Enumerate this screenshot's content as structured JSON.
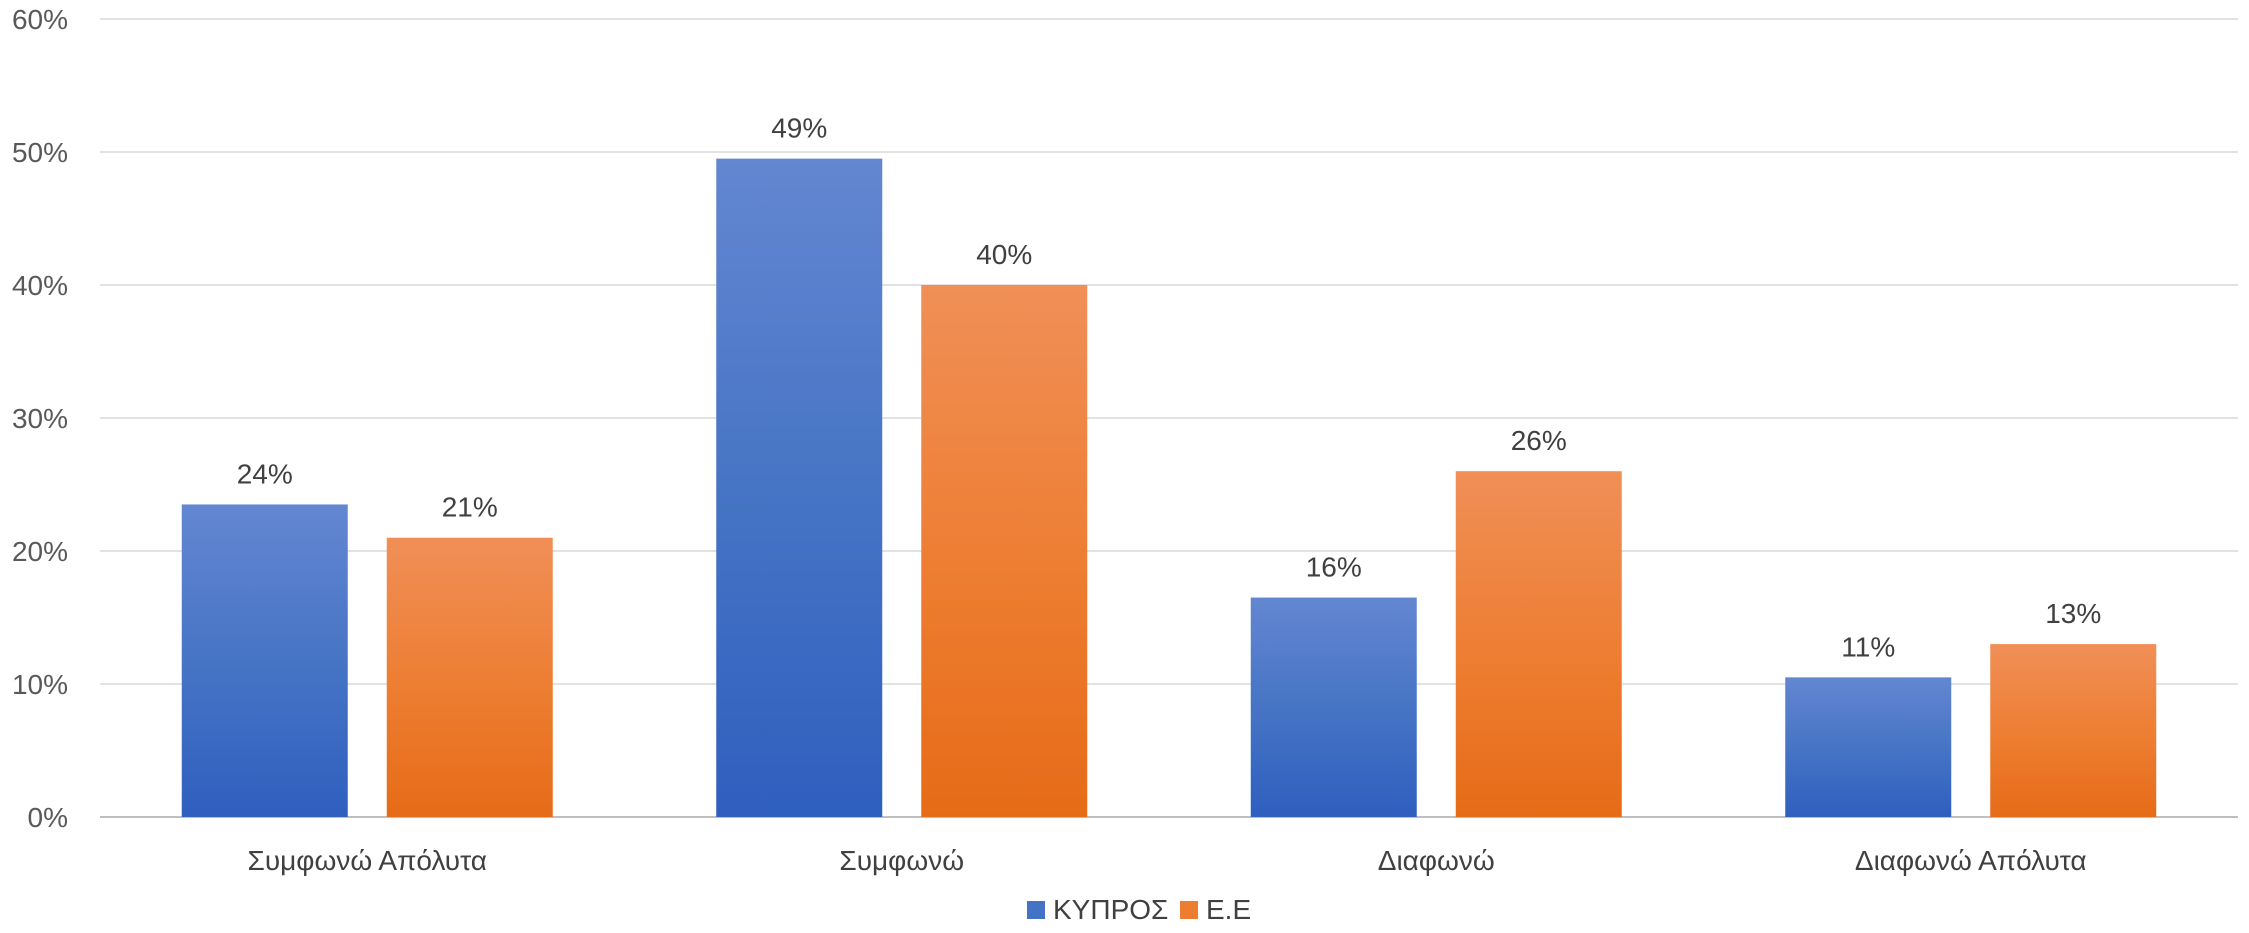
{
  "chart_data": {
    "type": "bar",
    "categories": [
      "Συμφωνώ Απόλυτα",
      "Συμφωνώ",
      "Διαφωνώ",
      "Διαφωνώ Απόλυτα"
    ],
    "series": [
      {
        "name": "ΚΥΠΡΟΣ",
        "values": [
          23.5,
          49.5,
          16.5,
          10.5
        ],
        "labels": [
          "24%",
          "49%",
          "16%",
          "11%"
        ],
        "color": "#4472c4",
        "color_light": "#6387d1",
        "color_dark": "#2f5fbf"
      },
      {
        "name": "Ε.Ε",
        "values": [
          21,
          40,
          26,
          13
        ],
        "labels": [
          "21%",
          "40%",
          "26%",
          "13%"
        ],
        "color": "#ed7d31",
        "color_light": "#f08f57",
        "color_dark": "#e66b17"
      }
    ],
    "ylim": [
      0,
      60
    ],
    "yticks": [
      0,
      10,
      20,
      30,
      40,
      50,
      60
    ],
    "ytick_labels": [
      "0%",
      "10%",
      "20%",
      "30%",
      "40%",
      "50%",
      "60%"
    ],
    "grid": true,
    "legend": "bottom-center",
    "title": "",
    "xlabel": "",
    "ylabel": ""
  }
}
